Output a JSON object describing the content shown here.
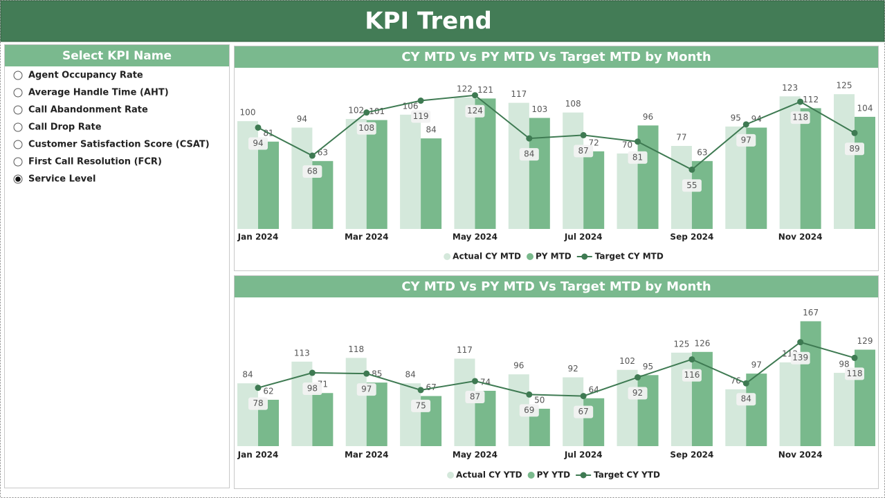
{
  "header": {
    "title": "KPI Trend"
  },
  "slicer": {
    "title": "Select KPI Name",
    "options": [
      {
        "label": "Agent Occupancy Rate",
        "selected": false
      },
      {
        "label": "Average Handle Time (AHT)",
        "selected": false
      },
      {
        "label": "Call Abandonment Rate",
        "selected": false
      },
      {
        "label": "Call Drop Rate",
        "selected": false
      },
      {
        "label": "Customer Satisfaction Score (CSAT)",
        "selected": false
      },
      {
        "label": "First Call Resolution (FCR)",
        "selected": false
      },
      {
        "label": "Service Level",
        "selected": true
      }
    ]
  },
  "chart_data": [
    {
      "type": "bar_line",
      "title": "CY MTD Vs PY MTD Vs Target MTD by Month",
      "categories": [
        "Jan 2024",
        null,
        "Mar 2024",
        null,
        "May 2024",
        null,
        "Jul 2024",
        null,
        "Sep 2024",
        null,
        "Nov 2024",
        null
      ],
      "ylim": [
        0,
        145
      ],
      "series": [
        {
          "name": "Actual CY MTD",
          "type": "bar",
          "color": "#d4e8db",
          "values": [
            100,
            94,
            102,
            106,
            122,
            117,
            108,
            70,
            77,
            95,
            123,
            125
          ]
        },
        {
          "name": "PY MTD",
          "type": "bar",
          "color": "#79b98c",
          "values": [
            81,
            63,
            101,
            84,
            121,
            103,
            72,
            96,
            63,
            94,
            112,
            104
          ]
        },
        {
          "name": "Target CY MTD",
          "type": "line",
          "color": "#3e7a52",
          "values": [
            94,
            68,
            108,
            119,
            124,
            84,
            87,
            81,
            55,
            97,
            118,
            89
          ]
        }
      ]
    },
    {
      "type": "bar_line",
      "title": "CY MTD Vs PY MTD Vs Target MTD by Month",
      "categories": [
        "Jan 2024",
        null,
        "Mar 2024",
        null,
        "May 2024",
        null,
        "Jul 2024",
        null,
        "Sep 2024",
        null,
        "Nov 2024",
        null
      ],
      "ylim": [
        0,
        185
      ],
      "series": [
        {
          "name": "Actual CY YTD",
          "type": "bar",
          "color": "#d4e8db",
          "values": [
            84,
            113,
            118,
            84,
            117,
            96,
            92,
            102,
            125,
            76,
            112,
            98
          ]
        },
        {
          "name": "PY YTD",
          "type": "bar",
          "color": "#79b98c",
          "values": [
            62,
            71,
            85,
            67,
            74,
            50,
            64,
            95,
            126,
            97,
            167,
            129
          ]
        },
        {
          "name": "Target CY YTD",
          "type": "line",
          "color": "#3e7a52",
          "values": [
            78,
            98,
            97,
            75,
            87,
            69,
            67,
            92,
            116,
            84,
            139,
            118
          ]
        }
      ]
    }
  ]
}
